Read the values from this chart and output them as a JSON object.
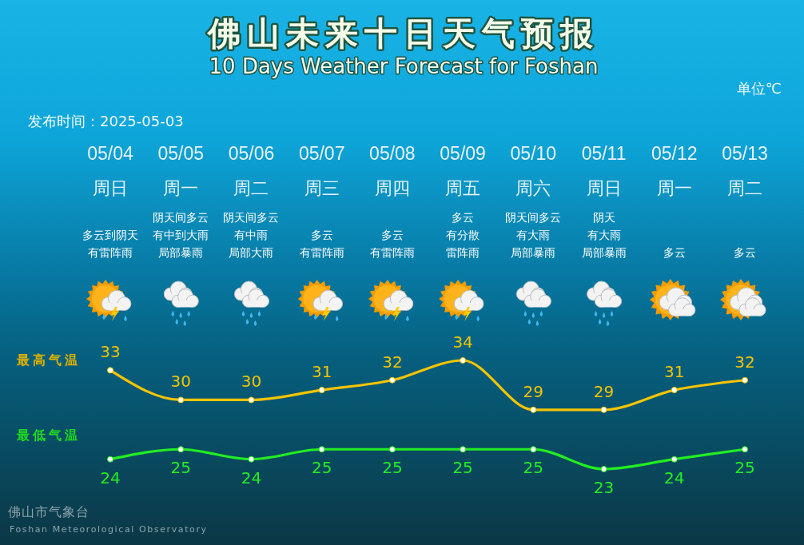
{
  "chart_data": {
    "type": "line",
    "title": "佛山未来十日天气预报",
    "subtitle": "10 Days Weather Forecast for Foshan",
    "categories": [
      "05/04\n周日",
      "05/05\n周一",
      "05/06\n周二",
      "05/07\n周三",
      "05/08\n周四",
      "05/09\n周五",
      "05/10\n周六",
      "05/11\n周日",
      "05/12\n周一",
      "05/13\n周二"
    ],
    "series": [
      {
        "name": "最高气温",
        "color": "#f5c400",
        "values": [
          33,
          30,
          30,
          31,
          32,
          34,
          29,
          29,
          31,
          32
        ]
      },
      {
        "name": "最低气温",
        "color": "#22ee22",
        "values": [
          24,
          25,
          24,
          25,
          25,
          25,
          25,
          23,
          24,
          25
        ]
      }
    ],
    "data_labels": true,
    "marker": "circle",
    "line_style": "solid",
    "annotations": [
      "单位℃",
      "发布时间：2025-05-03",
      "多云到阴天有雷阵雨",
      "阴天间多云有中到大雨局部暴雨",
      "阴天间多云有中雨局部大雨",
      "多云有雷阵雨",
      "多云有雷阵雨",
      "多云有分散雷阵雨",
      "阴天间多云有大雨局部暴雨",
      "阴天有大雨局部暴雨",
      "多云",
      "多云",
      "佛山市气象台",
      "Foshan Meteorological Observatory"
    ]
  }
}
